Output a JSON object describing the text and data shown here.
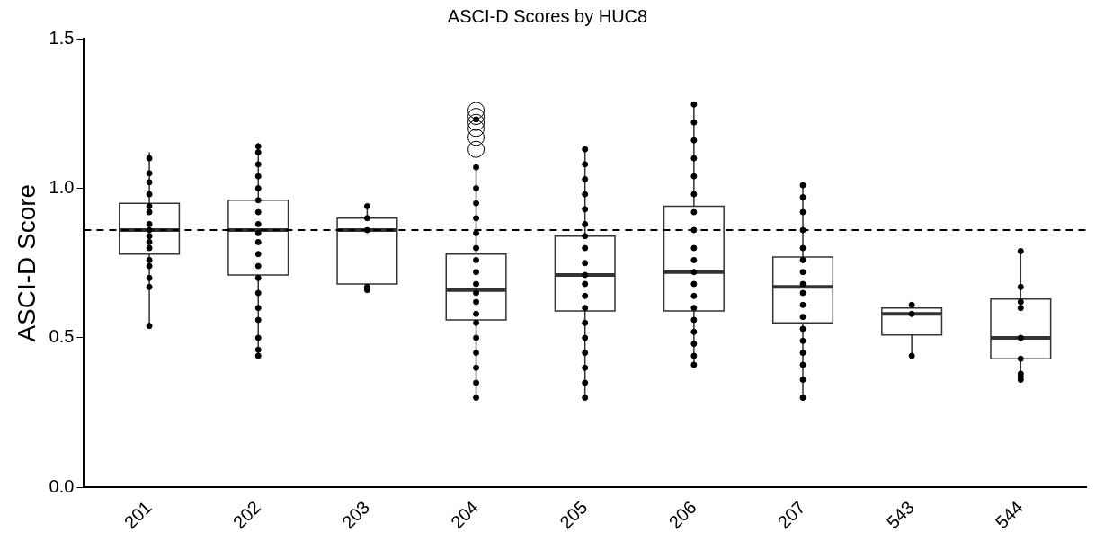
{
  "chart_data": {
    "type": "box",
    "title": "ASCI-D Scores by HUC8",
    "ylabel": "ASCI-D Score",
    "categories": [
      "201",
      "202",
      "203",
      "204",
      "205",
      "206",
      "207",
      "543",
      "544"
    ],
    "boxes": [
      {
        "low": 0.54,
        "q1": 0.78,
        "median": 0.86,
        "q3": 0.95,
        "high": 1.12
      },
      {
        "low": 0.44,
        "q1": 0.71,
        "median": 0.86,
        "q3": 0.96,
        "high": 1.15
      },
      {
        "low": 0.66,
        "q1": 0.68,
        "median": 0.86,
        "q3": 0.9,
        "high": 0.95
      },
      {
        "low": 0.3,
        "q1": 0.56,
        "median": 0.66,
        "q3": 0.78,
        "high": 1.08,
        "outliers": [
          1.26,
          1.24,
          1.22,
          1.2,
          1.17,
          1.13
        ]
      },
      {
        "low": 0.3,
        "q1": 0.59,
        "median": 0.71,
        "q3": 0.84,
        "high": 1.14
      },
      {
        "low": 0.41,
        "q1": 0.59,
        "median": 0.72,
        "q3": 0.94,
        "high": 1.28
      },
      {
        "low": 0.3,
        "q1": 0.55,
        "median": 0.67,
        "q3": 0.77,
        "high": 1.02
      },
      {
        "low": 0.44,
        "q1": 0.51,
        "median": 0.58,
        "q3": 0.6,
        "high": 0.61
      },
      {
        "low": 0.37,
        "q1": 0.43,
        "median": 0.5,
        "q3": 0.63,
        "high": 0.79
      }
    ],
    "series": [
      {
        "type": "scatter",
        "color": "#000000",
        "x": [
          "201",
          "201",
          "201",
          "201",
          "201",
          "201",
          "201",
          "201",
          "201",
          "201",
          "201",
          "201",
          "201",
          "201",
          "201",
          "201",
          "202",
          "202",
          "202",
          "202",
          "202",
          "202",
          "202",
          "202",
          "202",
          "202",
          "202",
          "202",
          "202",
          "202",
          "202",
          "202",
          "202",
          "202",
          "202",
          "203",
          "203",
          "203",
          "203",
          "203",
          "204",
          "204",
          "204",
          "204",
          "204",
          "204",
          "204",
          "204",
          "204",
          "204",
          "204",
          "204",
          "204",
          "204",
          "204",
          "204",
          "204",
          "204",
          "204",
          "205",
          "205",
          "205",
          "205",
          "205",
          "205",
          "205",
          "205",
          "205",
          "205",
          "205",
          "205",
          "205",
          "205",
          "205",
          "205",
          "205",
          "205",
          "205",
          "206",
          "206",
          "206",
          "206",
          "206",
          "206",
          "206",
          "206",
          "206",
          "206",
          "206",
          "206",
          "206",
          "206",
          "206",
          "206",
          "206",
          "206",
          "206",
          "207",
          "207",
          "207",
          "207",
          "207",
          "207",
          "207",
          "207",
          "207",
          "207",
          "207",
          "207",
          "207",
          "207",
          "207",
          "207",
          "207",
          "543",
          "543",
          "543",
          "544",
          "544",
          "544",
          "544",
          "544",
          "544",
          "544",
          "544",
          "544"
        ],
        "values": [
          1.1,
          1.05,
          1.02,
          0.98,
          0.94,
          0.92,
          0.88,
          0.86,
          0.84,
          0.82,
          0.8,
          0.76,
          0.74,
          0.7,
          0.67,
          0.54,
          1.14,
          1.12,
          1.08,
          1.04,
          1.0,
          0.96,
          0.92,
          0.88,
          0.85,
          0.82,
          0.78,
          0.74,
          0.7,
          0.65,
          0.6,
          0.56,
          0.5,
          0.46,
          0.44,
          0.94,
          0.9,
          0.86,
          0.67,
          0.66,
          1.23,
          1.07,
          1.0,
          0.95,
          0.9,
          0.85,
          0.8,
          0.76,
          0.72,
          0.68,
          0.65,
          0.62,
          0.58,
          0.55,
          0.5,
          0.45,
          0.4,
          0.35,
          0.3,
          1.13,
          1.08,
          1.03,
          0.98,
          0.93,
          0.88,
          0.84,
          0.8,
          0.75,
          0.71,
          0.68,
          0.64,
          0.6,
          0.55,
          0.5,
          0.45,
          0.4,
          0.35,
          0.3,
          1.28,
          1.22,
          1.16,
          1.1,
          1.04,
          0.98,
          0.92,
          0.86,
          0.8,
          0.76,
          0.72,
          0.68,
          0.64,
          0.6,
          0.56,
          0.52,
          0.48,
          0.44,
          0.41,
          1.01,
          0.97,
          0.92,
          0.86,
          0.8,
          0.76,
          0.72,
          0.68,
          0.65,
          0.61,
          0.57,
          0.53,
          0.49,
          0.45,
          0.41,
          0.36,
          0.3,
          0.61,
          0.58,
          0.44,
          0.79,
          0.67,
          0.62,
          0.6,
          0.5,
          0.43,
          0.38,
          0.37,
          0.36
        ]
      }
    ],
    "ylim": [
      0,
      1.5
    ],
    "yticks": [
      {
        "value": 0,
        "label": "0.0"
      },
      {
        "value": 0.5,
        "label": "0.5"
      },
      {
        "value": 1,
        "label": "1.0"
      },
      {
        "value": 1.5,
        "label": "1.5"
      }
    ],
    "ref_lines": [
      {
        "axis": "y",
        "value": 0.86,
        "line_style": "dashed"
      }
    ],
    "grid": false,
    "legend": false
  }
}
